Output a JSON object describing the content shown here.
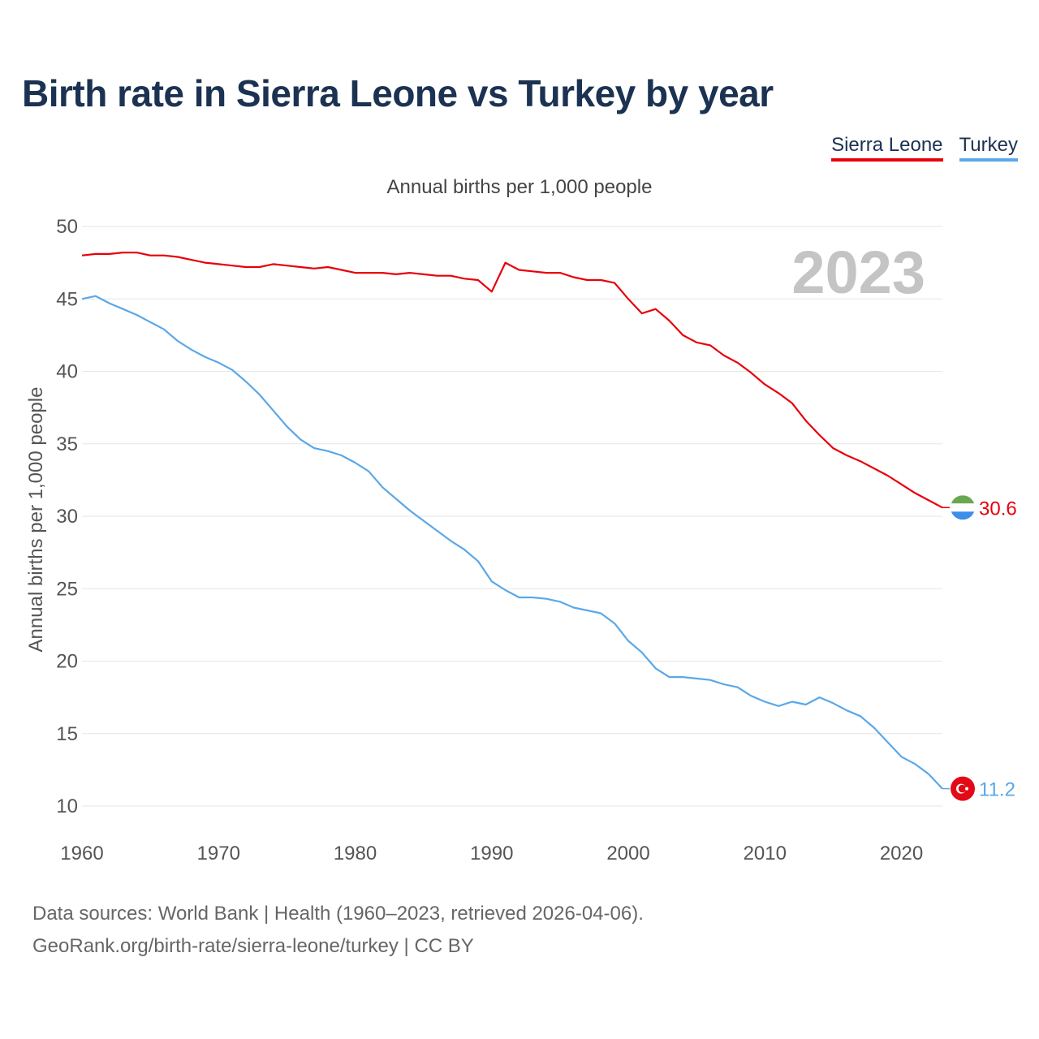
{
  "title": "Birth rate in Sierra Leone vs Turkey by year",
  "legend": [
    {
      "label": "Sierra Leone",
      "color": "#e8000b"
    },
    {
      "label": "Turkey",
      "color": "#5aa8e8"
    }
  ],
  "subtitle": "Annual births per 1,000 people",
  "year_watermark": "2023",
  "footer": {
    "line1": "Data sources: World Bank | Health (1960–2023, retrieved 2026-04-06).",
    "line2": "GeoRank.org/birth-rate/sierra-leone/turkey | CC BY"
  },
  "chart_data": {
    "type": "line",
    "title": "Birth rate in Sierra Leone vs Turkey by year",
    "xlabel": "",
    "ylabel": "Annual births per 1,000 people",
    "xlim": [
      1960,
      2023
    ],
    "ylim": [
      10,
      50
    ],
    "x_ticks": [
      1960,
      1970,
      1980,
      1990,
      2000,
      2010,
      2020
    ],
    "y_ticks": [
      10,
      15,
      20,
      25,
      30,
      35,
      40,
      45,
      50
    ],
    "grid": true,
    "legend_position": "top-right",
    "x": [
      1960,
      1961,
      1962,
      1963,
      1964,
      1965,
      1966,
      1967,
      1968,
      1969,
      1970,
      1971,
      1972,
      1973,
      1974,
      1975,
      1976,
      1977,
      1978,
      1979,
      1980,
      1981,
      1982,
      1983,
      1984,
      1985,
      1986,
      1987,
      1988,
      1989,
      1990,
      1991,
      1992,
      1993,
      1994,
      1995,
      1996,
      1997,
      1998,
      1999,
      2000,
      2001,
      2002,
      2003,
      2004,
      2005,
      2006,
      2007,
      2008,
      2009,
      2010,
      2011,
      2012,
      2013,
      2014,
      2015,
      2016,
      2017,
      2018,
      2019,
      2020,
      2021,
      2022,
      2023
    ],
    "series": [
      {
        "name": "Sierra Leone",
        "color": "#e8000b",
        "end_label": "30.6",
        "values": [
          48.0,
          48.1,
          48.1,
          48.2,
          48.2,
          48.0,
          48.0,
          47.9,
          47.7,
          47.5,
          47.4,
          47.3,
          47.2,
          47.2,
          47.4,
          47.3,
          47.2,
          47.1,
          47.2,
          47.0,
          46.8,
          46.8,
          46.8,
          46.7,
          46.8,
          46.7,
          46.6,
          46.6,
          46.4,
          46.3,
          45.5,
          47.5,
          47.0,
          46.9,
          46.8,
          46.8,
          46.5,
          46.3,
          46.3,
          46.1,
          45.0,
          44.0,
          44.3,
          43.5,
          42.5,
          42.0,
          41.8,
          41.1,
          40.6,
          39.9,
          39.1,
          38.5,
          37.8,
          36.6,
          35.6,
          34.7,
          34.2,
          33.8,
          33.3,
          32.8,
          32.2,
          31.6,
          31.1,
          30.6
        ]
      },
      {
        "name": "Turkey",
        "color": "#5aa8e8",
        "end_label": "11.2",
        "values": [
          45.0,
          45.2,
          44.7,
          44.3,
          43.9,
          43.4,
          42.9,
          42.1,
          41.5,
          41.0,
          40.6,
          40.1,
          39.3,
          38.4,
          37.3,
          36.2,
          35.3,
          34.7,
          34.5,
          34.2,
          33.7,
          33.1,
          32.0,
          31.2,
          30.4,
          29.7,
          29.0,
          28.3,
          27.7,
          26.9,
          25.5,
          24.9,
          24.4,
          24.4,
          24.3,
          24.1,
          23.7,
          23.5,
          23.3,
          22.6,
          21.4,
          20.6,
          19.5,
          18.9,
          18.9,
          18.8,
          18.7,
          18.4,
          18.2,
          17.6,
          17.2,
          16.9,
          17.2,
          17.0,
          17.5,
          17.1,
          16.6,
          16.2,
          15.4,
          14.4,
          13.4,
          12.9,
          12.2,
          11.2
        ]
      }
    ]
  }
}
